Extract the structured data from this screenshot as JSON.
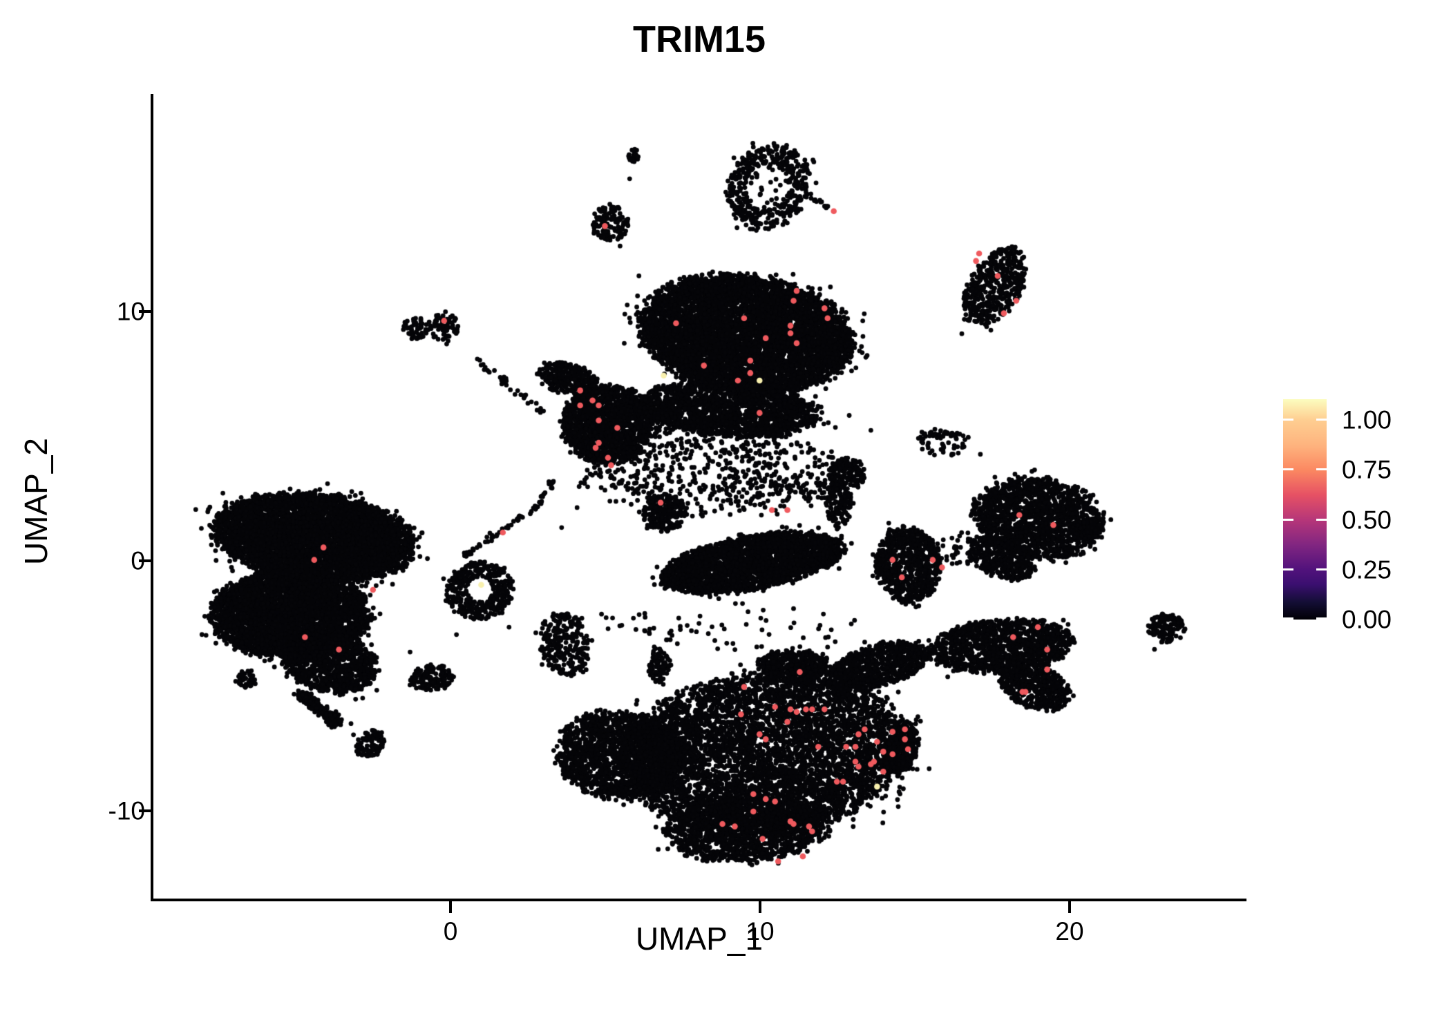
{
  "title": "TRIM15",
  "axes": {
    "x_label": "UMAP_1",
    "y_label": "UMAP_2",
    "x_ticks": [
      "0",
      "10",
      "20"
    ],
    "y_ticks": [
      "10",
      "0",
      "-10"
    ]
  },
  "legend": {
    "labels": [
      "1.00",
      "0.75",
      "0.50",
      "0.25",
      "0.00"
    ],
    "colormap": "magma",
    "top_color": "#fcfdbf",
    "bottom_color": "#000004"
  },
  "chart_data": {
    "type": "scatter",
    "title": "TRIM15",
    "xlabel": "UMAP_1",
    "ylabel": "UMAP_2",
    "xlim": [
      -9.6,
      25.7
    ],
    "ylim": [
      -13.55,
      18.75
    ],
    "x_tick_values": [
      0,
      10,
      20
    ],
    "y_tick_values": [
      10,
      0,
      -10
    ],
    "legend_ticks": [
      1.0,
      0.75,
      0.5,
      0.25,
      0.0
    ],
    "legend_range": [
      0,
      1.1
    ],
    "grid": false,
    "legend_position": "right",
    "point_style": {
      "base_color": "#050508",
      "base_radius": 3.4,
      "highlight_radius": 4.3,
      "mid_expr_red": "#ef5a5e",
      "high_expr_yellow": "#f8f0ae"
    },
    "clusters": [
      {
        "name": "tiny-top-blob",
        "cx": 5.96,
        "cy": 16.35,
        "rx": 0.2,
        "ry": 0.3,
        "rot": 0,
        "n": 22,
        "kind": "disk"
      },
      {
        "name": "top-small-cluster",
        "cx": 5.18,
        "cy": 13.61,
        "rx": 0.58,
        "ry": 0.72,
        "rot": 10,
        "n": 120,
        "kind": "disk"
      },
      {
        "name": "ring-cluster",
        "cx": 10.27,
        "cy": 15.08,
        "rx": 1.3,
        "ry": 1.72,
        "rot": -14,
        "n": 430,
        "kind": "ring",
        "hole": 0.52
      },
      {
        "name": "ring-inner-specks",
        "cx": 10.27,
        "cy": 15.0,
        "rx": 0.75,
        "ry": 0.95,
        "rot": 0,
        "n": 26,
        "kind": "disk"
      },
      {
        "name": "comma-cluster-topright",
        "cx": 17.6,
        "cy": 11.06,
        "rx": 0.85,
        "ry": 1.7,
        "rot": -22,
        "n": 430,
        "kind": "disk"
      },
      {
        "name": "midleft-pair-left",
        "cx": -1.12,
        "cy": 9.38,
        "rx": 0.42,
        "ry": 0.5,
        "rot": 0,
        "n": 55,
        "kind": "disk"
      },
      {
        "name": "midleft-pair-right",
        "cx": -0.18,
        "cy": 9.46,
        "rx": 0.48,
        "ry": 0.58,
        "rot": -15,
        "n": 70,
        "kind": "disk"
      },
      {
        "name": "eyebrow-arc",
        "cx": 7.59,
        "cy": 9.29,
        "rx": 0.8,
        "ry": 0.48,
        "rot": -8,
        "n": 85,
        "kind": "disk"
      },
      {
        "name": "center-top-main",
        "cx": 9.55,
        "cy": 9.18,
        "rx": 3.4,
        "ry": 2.3,
        "rot": -10,
        "n": 6200,
        "kind": "disk"
      },
      {
        "name": "center-top-left-tip",
        "cx": 3.79,
        "cy": 7.39,
        "rx": 0.95,
        "ry": 0.6,
        "rot": -15,
        "n": 300,
        "kind": "disk"
      },
      {
        "name": "center-top-lowerleft-lobe",
        "cx": 5.09,
        "cy": 5.53,
        "rx": 1.45,
        "ry": 1.55,
        "rot": 0,
        "n": 1500,
        "kind": "disk"
      },
      {
        "name": "center-top-bottom-strip",
        "cx": 9.0,
        "cy": 6.14,
        "rx": 2.9,
        "ry": 1.05,
        "rot": -5,
        "n": 1700,
        "kind": "disk"
      },
      {
        "name": "center-under-scatter",
        "cx": 8.66,
        "cy": 3.87,
        "rx": 4.2,
        "ry": 1.7,
        "rot": -5,
        "n": 420,
        "kind": "disk"
      },
      {
        "name": "swoosh-left-lump",
        "cx": 6.92,
        "cy": 1.99,
        "rx": 0.72,
        "ry": 0.72,
        "rot": 0,
        "n": 230,
        "kind": "disk"
      },
      {
        "name": "swoosh-wave",
        "cx": 9.78,
        "cy": 0.0,
        "rx": 2.95,
        "ry": 1.05,
        "rot": 13,
        "n": 2600,
        "kind": "disk"
      },
      {
        "name": "swoosh-hook",
        "cx": 12.86,
        "cy": 3.6,
        "rx": 0.62,
        "ry": 0.58,
        "rot": 0,
        "n": 140,
        "kind": "disk"
      },
      {
        "name": "swoosh-bridge",
        "cx": 12.57,
        "cy": 2.41,
        "rx": 0.45,
        "ry": 0.95,
        "rot": 0,
        "n": 130,
        "kind": "disk"
      },
      {
        "name": "donut-cluster",
        "cx": 0.96,
        "cy": -1.13,
        "rx": 1.07,
        "ry": 1.15,
        "rot": 0,
        "n": 380,
        "kind": "ring",
        "hole": 0.4
      },
      {
        "name": "left-big-top-lobe",
        "cx": -4.4,
        "cy": 1.0,
        "rx": 3.2,
        "ry": 1.7,
        "rot": -8,
        "n": 5200,
        "kind": "disk"
      },
      {
        "name": "left-big-bottom-lobe",
        "cx": -5.18,
        "cy": -2.1,
        "rx": 2.5,
        "ry": 1.75,
        "rot": 0,
        "n": 3800,
        "kind": "disk"
      },
      {
        "name": "left-big-lower-lobe",
        "cx": -3.88,
        "cy": -4.04,
        "rx": 1.55,
        "ry": 1.15,
        "rot": -20,
        "n": 1000,
        "kind": "disk"
      },
      {
        "name": "left-tail-blob",
        "cx": -2.59,
        "cy": -7.27,
        "rx": 0.42,
        "ry": 0.58,
        "rot": -30,
        "n": 110,
        "kind": "disk"
      },
      {
        "name": "left-west-mini-blob",
        "cx": -6.58,
        "cy": -4.67,
        "rx": 0.33,
        "ry": 0.35,
        "rot": 0,
        "n": 45,
        "kind": "disk"
      },
      {
        "name": "arrow-blob",
        "cx": -0.6,
        "cy": -4.65,
        "rx": 0.72,
        "ry": 0.52,
        "rot": 15,
        "n": 140,
        "kind": "disk"
      },
      {
        "name": "southeast-of-donut-blob",
        "cx": 3.71,
        "cy": -3.26,
        "rx": 0.78,
        "ry": 1.28,
        "rot": 10,
        "n": 260,
        "kind": "disk"
      },
      {
        "name": "tiny-vertical-blob",
        "cx": 6.76,
        "cy": -4.18,
        "rx": 0.36,
        "ry": 0.68,
        "rot": 0,
        "n": 85,
        "kind": "disk"
      },
      {
        "name": "bottom-big-core",
        "cx": 10.22,
        "cy": -7.63,
        "rx": 4.5,
        "ry": 3.2,
        "rot": 8,
        "n": 5200,
        "kind": "disk"
      },
      {
        "name": "bottom-big-ne-arm",
        "cx": 13.84,
        "cy": -4.15,
        "rx": 1.75,
        "ry": 0.8,
        "rot": 20,
        "n": 750,
        "kind": "disk"
      },
      {
        "name": "bottom-big-top-bump",
        "cx": 11.12,
        "cy": -4.15,
        "rx": 1.15,
        "ry": 0.62,
        "rot": 0,
        "n": 420,
        "kind": "disk"
      },
      {
        "name": "bottom-big-west-wing",
        "cx": 5.54,
        "cy": -7.75,
        "rx": 2.1,
        "ry": 1.75,
        "rot": -12,
        "n": 1700,
        "kind": "disk"
      },
      {
        "name": "bottom-big-south-bulge",
        "cx": 9.55,
        "cy": -10.68,
        "rx": 2.6,
        "ry": 1.35,
        "rot": 3,
        "n": 1300,
        "kind": "disk"
      },
      {
        "name": "bottom-big-east-tip",
        "cx": 14.6,
        "cy": -7.47,
        "rx": 0.52,
        "ry": 1.05,
        "rot": -15,
        "n": 260,
        "kind": "disk"
      },
      {
        "name": "hatchet-top",
        "cx": 17.81,
        "cy": -3.35,
        "rx": 2.3,
        "ry": 1.05,
        "rot": 8,
        "n": 1100,
        "kind": "disk"
      },
      {
        "name": "hatchet-taper",
        "cx": 18.86,
        "cy": -4.92,
        "rx": 1.25,
        "ry": 0.85,
        "rot": -35,
        "n": 520,
        "kind": "disk"
      },
      {
        "name": "rightmid-main",
        "cx": 19.04,
        "cy": 1.77,
        "rx": 2.1,
        "ry": 1.6,
        "rot": -12,
        "n": 1600,
        "kind": "disk"
      },
      {
        "name": "rightmid-sw-tail",
        "cx": 17.86,
        "cy": 0.17,
        "rx": 1.1,
        "ry": 0.75,
        "rot": -35,
        "n": 380,
        "kind": "disk"
      },
      {
        "name": "rightmid-west-lobe",
        "cx": 14.82,
        "cy": -0.11,
        "rx": 1.05,
        "ry": 1.5,
        "rot": 5,
        "n": 700,
        "kind": "disk"
      },
      {
        "name": "rightmid-bridge",
        "cx": 16.58,
        "cy": 0.47,
        "rx": 1.0,
        "ry": 0.7,
        "rot": 0,
        "n": 60,
        "kind": "disk"
      },
      {
        "name": "far-right-blob",
        "cx": 23.17,
        "cy": -2.63,
        "rx": 0.62,
        "ry": 0.55,
        "rot": -20,
        "n": 120,
        "kind": "disk"
      },
      {
        "name": "ne-sparse-patch",
        "cx": 15.9,
        "cy": 4.8,
        "rx": 0.85,
        "ry": 0.55,
        "rot": -10,
        "n": 40,
        "kind": "disk"
      },
      {
        "name": "mid-gap-scatter",
        "cx": 8.66,
        "cy": 3.37,
        "rx": 4.3,
        "ry": 1.55,
        "rot": 0,
        "n": 230,
        "kind": "disk"
      },
      {
        "name": "band-above-bottom",
        "cx": 9.1,
        "cy": -2.57,
        "rx": 4.2,
        "ry": 1.1,
        "rot": 0,
        "n": 70,
        "kind": "disk"
      }
    ],
    "streaks": [
      {
        "name": "chain-upper",
        "x1": 0.8,
        "y1": 8.21,
        "x2": 3.04,
        "y2": 6.0,
        "n": 36,
        "jitter": 0.16
      },
      {
        "name": "chain-lower-a",
        "x1": 0.36,
        "y1": 0.17,
        "x2": 2.84,
        "y2": 2.27,
        "n": 46,
        "jitter": 0.15
      },
      {
        "name": "chain-lower-b",
        "x1": 2.84,
        "y1": 2.27,
        "x2": 3.35,
        "y2": 3.37,
        "n": 18,
        "jitter": 0.14
      },
      {
        "name": "ring-tail",
        "x1": 11.56,
        "y1": 14.72,
        "x2": 12.34,
        "y2": 14.16,
        "n": 16,
        "jitter": 0.1
      },
      {
        "name": "left-spike",
        "x1": -4.89,
        "y1": -5.26,
        "x2": -3.57,
        "y2": -6.5,
        "n": 260,
        "jitter": 0.24
      },
      {
        "name": "ne-bead-chain",
        "x1": 15.31,
        "y1": 5.2,
        "x2": 16.7,
        "y2": 5.03,
        "n": 26,
        "jitter": 0.18
      }
    ],
    "single_points": [
      [
        5.53,
        13.06
      ],
      [
        5.49,
        12.7
      ],
      [
        -3.21,
        -6.47
      ],
      [
        -3.13,
        -6.92
      ],
      [
        22.77,
        -3.49
      ],
      [
        16.54,
        9.18
      ],
      [
        17.48,
        9.32
      ],
      [
        15.58,
        4.48
      ],
      [
        17.14,
        4.34
      ],
      [
        12.9,
        5.9
      ],
      [
        13.6,
        5.3
      ],
      [
        0.2,
        -2.9
      ],
      [
        1.9,
        -2.6
      ],
      [
        -1.3,
        -3.6
      ],
      [
        6.3,
        -2.2
      ],
      [
        5.0,
        2.9
      ],
      [
        4.1,
        2.2
      ],
      [
        3.6,
        1.4
      ],
      [
        13.4,
        -3.2
      ],
      [
        12.2,
        -3.4
      ],
      [
        23.0,
        -3.2
      ],
      [
        6.1,
        11.5
      ],
      [
        5.8,
        15.4
      ]
    ],
    "highlighted_cells": [
      [
        5.0,
        13.5,
        0.6
      ],
      [
        -0.2,
        9.7,
        0.6
      ],
      [
        12.4,
        14.1,
        0.6
      ],
      [
        17.1,
        12.4,
        0.6
      ],
      [
        17.0,
        12.1,
        0.6
      ],
      [
        17.7,
        11.5,
        0.6
      ],
      [
        18.3,
        10.5,
        0.6
      ],
      [
        17.9,
        10.0,
        0.6
      ],
      [
        7.3,
        9.6,
        0.6
      ],
      [
        11.2,
        10.9,
        0.6
      ],
      [
        11.1,
        10.5,
        0.6
      ],
      [
        12.1,
        10.2,
        0.6
      ],
      [
        12.2,
        9.8,
        0.6
      ],
      [
        11.0,
        9.5,
        0.6
      ],
      [
        11.0,
        9.2,
        0.6
      ],
      [
        10.2,
        9.0,
        0.6
      ],
      [
        11.2,
        8.8,
        0.6
      ],
      [
        9.7,
        8.1,
        0.6
      ],
      [
        8.2,
        7.9,
        0.6
      ],
      [
        9.7,
        7.6,
        0.6
      ],
      [
        9.3,
        7.3,
        0.6
      ],
      [
        9.5,
        9.8,
        0.6
      ],
      [
        4.2,
        6.9,
        0.6
      ],
      [
        4.6,
        6.5,
        0.6
      ],
      [
        4.2,
        6.3,
        0.6
      ],
      [
        4.8,
        6.3,
        0.6
      ],
      [
        4.8,
        5.7,
        0.6
      ],
      [
        5.4,
        5.4,
        0.6
      ],
      [
        4.8,
        4.8,
        0.6
      ],
      [
        4.7,
        4.6,
        0.6
      ],
      [
        5.1,
        4.2,
        0.6
      ],
      [
        5.2,
        3.9,
        0.6
      ],
      [
        10.0,
        6.0,
        0.6
      ],
      [
        6.8,
        2.4,
        0.6
      ],
      [
        10.4,
        2.1,
        0.6
      ],
      [
        10.9,
        2.1,
        0.6
      ],
      [
        1.7,
        1.2,
        0.6
      ],
      [
        -4.1,
        0.6,
        0.6
      ],
      [
        -4.4,
        0.1,
        0.6
      ],
      [
        -2.5,
        -1.1,
        0.6
      ],
      [
        -4.7,
        -3.0,
        0.6
      ],
      [
        -3.6,
        -3.5,
        0.6
      ],
      [
        18.4,
        1.9,
        0.6
      ],
      [
        19.5,
        1.5,
        0.6
      ],
      [
        14.3,
        0.1,
        0.6
      ],
      [
        14.6,
        -0.6,
        0.6
      ],
      [
        15.6,
        0.1,
        0.6
      ],
      [
        15.9,
        -0.2,
        0.6
      ],
      [
        11.3,
        -4.4,
        0.6
      ],
      [
        9.5,
        -5.0,
        0.6
      ],
      [
        10.5,
        -5.8,
        0.6
      ],
      [
        11.0,
        -5.9,
        0.6
      ],
      [
        11.2,
        -6.0,
        0.6
      ],
      [
        11.5,
        -5.9,
        0.6
      ],
      [
        11.7,
        -5.9,
        0.6
      ],
      [
        12.1,
        -5.9,
        0.6
      ],
      [
        9.4,
        -6.1,
        0.6
      ],
      [
        10.9,
        -6.4,
        0.6
      ],
      [
        10.0,
        -6.9,
        0.6
      ],
      [
        10.2,
        -7.1,
        0.6
      ],
      [
        11.9,
        -7.4,
        0.6
      ],
      [
        12.8,
        -7.4,
        0.6
      ],
      [
        13.1,
        -7.4,
        0.6
      ],
      [
        13.4,
        -6.7,
        0.6
      ],
      [
        13.2,
        -6.9,
        0.6
      ],
      [
        13.8,
        -7.2,
        0.6
      ],
      [
        14.3,
        -6.8,
        0.6
      ],
      [
        14.3,
        -7.7,
        0.6
      ],
      [
        14.0,
        -7.6,
        0.6
      ],
      [
        14.7,
        -6.7,
        0.6
      ],
      [
        14.7,
        -7.1,
        0.6
      ],
      [
        14.8,
        -7.5,
        0.6
      ],
      [
        13.1,
        -8.0,
        0.6
      ],
      [
        13.6,
        -8.1,
        0.6
      ],
      [
        13.7,
        -8.0,
        0.6
      ],
      [
        14.0,
        -8.4,
        0.6
      ],
      [
        13.2,
        -8.2,
        0.6
      ],
      [
        12.5,
        -8.8,
        0.6
      ],
      [
        12.7,
        -8.8,
        0.6
      ],
      [
        9.8,
        -9.3,
        0.6
      ],
      [
        10.2,
        -9.5,
        0.6
      ],
      [
        10.5,
        -9.6,
        0.6
      ],
      [
        9.8,
        -10.0,
        0.6
      ],
      [
        8.8,
        -10.5,
        0.6
      ],
      [
        9.2,
        -10.6,
        0.6
      ],
      [
        11.0,
        -10.4,
        0.6
      ],
      [
        11.1,
        -10.5,
        0.6
      ],
      [
        11.6,
        -10.6,
        0.6
      ],
      [
        11.7,
        -10.8,
        0.6
      ],
      [
        10.1,
        -11.1,
        0.6
      ],
      [
        10.6,
        -12.0,
        0.6
      ],
      [
        11.4,
        -11.8,
        0.6
      ],
      [
        19.3,
        -3.5,
        0.6
      ],
      [
        19.0,
        -2.6,
        0.6
      ],
      [
        18.2,
        -3.0,
        0.6
      ],
      [
        19.3,
        -4.3,
        0.6
      ],
      [
        18.5,
        -5.2,
        0.6
      ],
      [
        18.6,
        -5.2,
        0.6
      ],
      [
        10.0,
        7.3,
        1.0
      ],
      [
        6.9,
        7.5,
        0.95
      ],
      [
        1.0,
        -0.9,
        0.9
      ],
      [
        13.8,
        -9.0,
        0.95
      ]
    ]
  }
}
